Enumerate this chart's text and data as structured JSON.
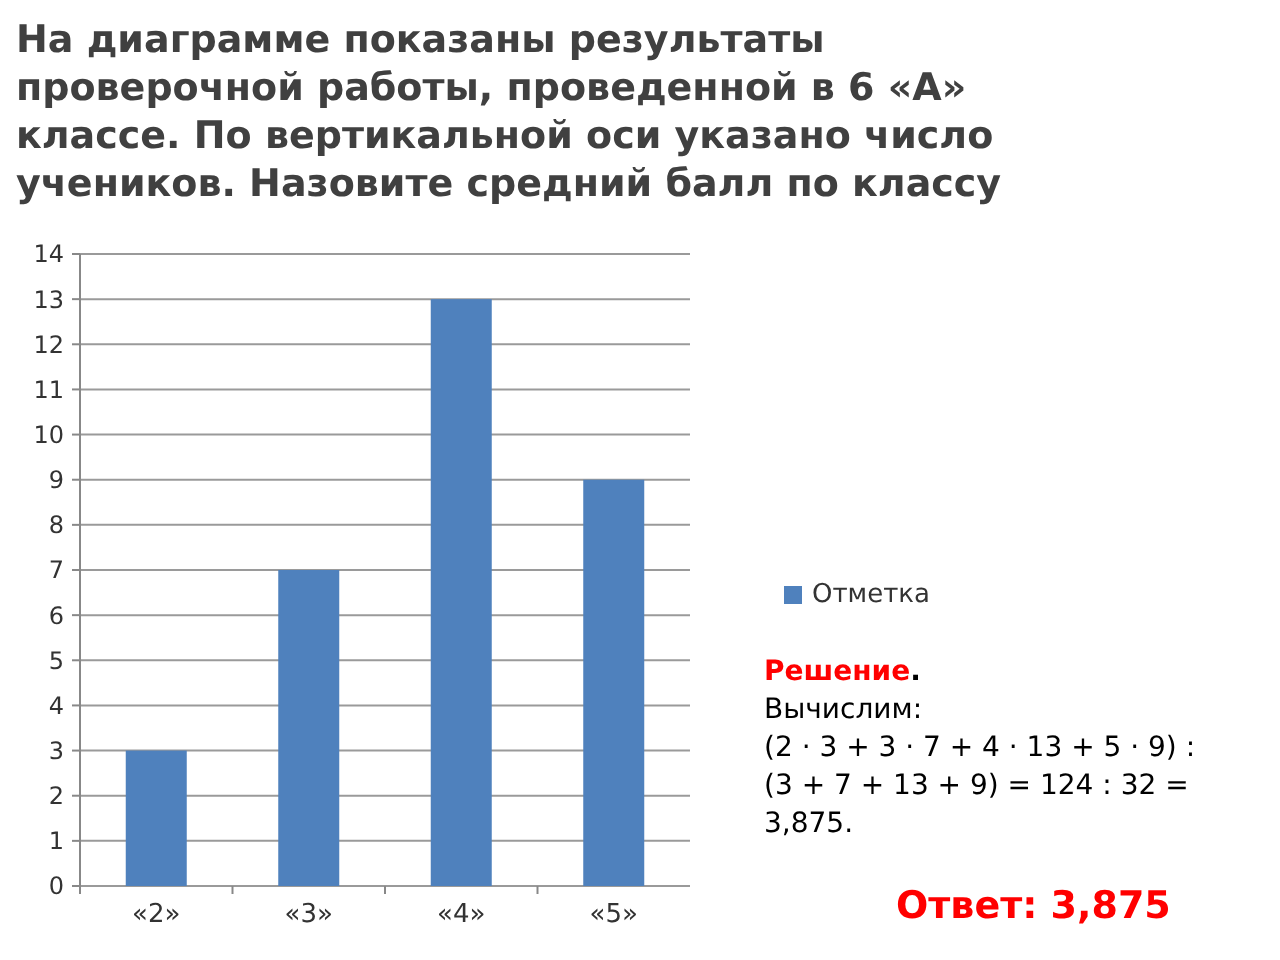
{
  "chart_data": {
    "type": "bar",
    "title": "На диаграмме показаны результаты\nпроверочной работы, проведенной в 6 «А»\nклассе. По вертикальной оси указано число\nучеников. Назовите средний балл по классу",
    "categories": [
      "«2»",
      "«3»",
      "«4»",
      "«5»"
    ],
    "series": [
      {
        "name": "Отметка",
        "color": "#4f81bd",
        "values": [
          3,
          7,
          13,
          9
        ]
      }
    ],
    "ylim": [
      0,
      14
    ],
    "yticks": [
      0,
      1,
      2,
      3,
      4,
      5,
      6,
      7,
      8,
      9,
      10,
      11,
      12,
      13,
      14
    ],
    "grid": "y",
    "legend": "right",
    "annotations": [
      "Решение.\nВычислим:\n(2 · 3 + 3 · 7 + 4 · 13 + 5 · 9) :\n(3 + 7 + 13 + 9) = 124 : 32 =\n3,875.",
      "Ответ: 3,875"
    ]
  }
}
